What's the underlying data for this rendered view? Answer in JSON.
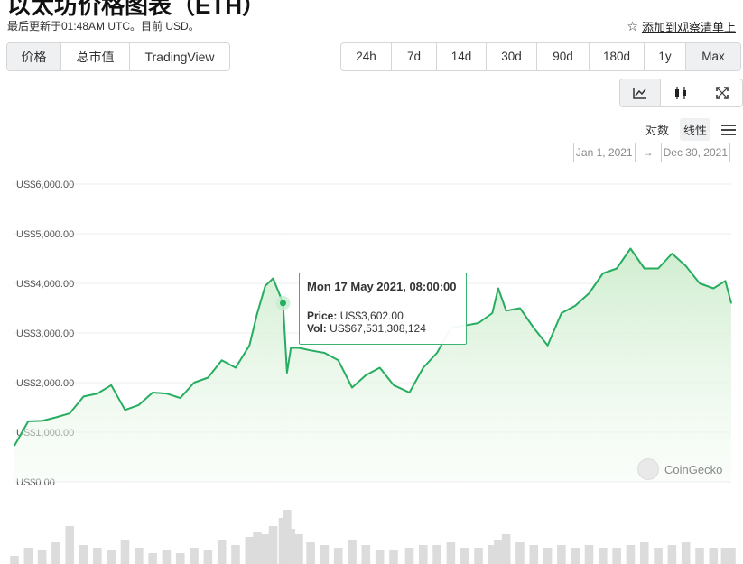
{
  "header": {
    "title": "以太坊价格图表（ETH）",
    "updated": "最后更新于01:48AM UTC。目前 USD。",
    "watchlist_label": "添加到观察清单上"
  },
  "tabs": [
    {
      "label": "价格",
      "active": true
    },
    {
      "label": "总市值",
      "active": false
    },
    {
      "label": "TradingView",
      "active": false
    }
  ],
  "ranges": [
    {
      "label": "24h",
      "active": false
    },
    {
      "label": "7d",
      "active": false
    },
    {
      "label": "14d",
      "active": false
    },
    {
      "label": "30d",
      "active": false
    },
    {
      "label": "90d",
      "active": false
    },
    {
      "label": "180d",
      "active": false
    },
    {
      "label": "1y",
      "active": false
    },
    {
      "label": "Max",
      "active": true
    }
  ],
  "chart_types": [
    {
      "name": "line-chart-icon",
      "active": true
    },
    {
      "name": "candlestick-icon",
      "active": false
    },
    {
      "name": "expand-icon",
      "active": false
    }
  ],
  "scale": {
    "log_label": "对数",
    "linear_label": "线性",
    "active": "linear"
  },
  "date_range": {
    "from": "Jan 1, 2021",
    "arrow": "→",
    "to": "Dec 30, 2021"
  },
  "tooltip": {
    "title": "Mon 17 May 2021, 08:00:00",
    "price_label": "Price:",
    "price_value": "US$3,602.00",
    "vol_label": "Vol:",
    "vol_value": "US$67,531,308,124"
  },
  "watermark": "CoinGecko",
  "colors": {
    "line": "#27ad60",
    "fill_top": "#d8f0d8",
    "crosshair": "#bbbbbb",
    "volume": "#dcdcdc"
  },
  "chart_data": {
    "type": "area",
    "x_range": [
      "2021-01-01",
      "2021-12-30"
    ],
    "ylim": [
      0,
      6000
    ],
    "y_ticks": [
      {
        "value": 0,
        "label": "US$0.00"
      },
      {
        "value": 1000,
        "label": "US$1,000.00"
      },
      {
        "value": 2000,
        "label": "US$2,000.00"
      },
      {
        "value": 3000,
        "label": "US$3,000.00"
      },
      {
        "value": 4000,
        "label": "US$4,000.00"
      },
      {
        "value": 5000,
        "label": "US$5,000.00"
      },
      {
        "value": 6000,
        "label": "US$6,000.00"
      }
    ],
    "highlight": {
      "date": "2021-05-17",
      "value": 3602
    },
    "series": [
      {
        "x": [
          "2021-01-01",
          "2021-01-08",
          "2021-01-15",
          "2021-01-22",
          "2021-01-29",
          "2021-02-05",
          "2021-02-12",
          "2021-02-19",
          "2021-02-26",
          "2021-03-05",
          "2021-03-12",
          "2021-03-19",
          "2021-03-26",
          "2021-04-02",
          "2021-04-09",
          "2021-04-16",
          "2021-04-23",
          "2021-04-30",
          "2021-05-04",
          "2021-05-08",
          "2021-05-12",
          "2021-05-17",
          "2021-05-19",
          "2021-05-21",
          "2021-05-25",
          "2021-05-31",
          "2021-06-07",
          "2021-06-14",
          "2021-06-21",
          "2021-06-28",
          "2021-07-05",
          "2021-07-12",
          "2021-07-20",
          "2021-07-27",
          "2021-08-03",
          "2021-08-10",
          "2021-08-17",
          "2021-08-24",
          "2021-08-31",
          "2021-09-03",
          "2021-09-07",
          "2021-09-14",
          "2021-09-21",
          "2021-09-28",
          "2021-10-05",
          "2021-10-12",
          "2021-10-19",
          "2021-10-26",
          "2021-11-02",
          "2021-11-09",
          "2021-11-16",
          "2021-11-23",
          "2021-11-30",
          "2021-12-07",
          "2021-12-14",
          "2021-12-21",
          "2021-12-27",
          "2021-12-30"
        ],
        "values": [
          730,
          1220,
          1230,
          1300,
          1380,
          1720,
          1780,
          1950,
          1450,
          1550,
          1800,
          1780,
          1690,
          2000,
          2100,
          2450,
          2300,
          2750,
          3400,
          3950,
          4100,
          3602,
          2200,
          2700,
          2700,
          2650,
          2600,
          2450,
          1900,
          2150,
          2300,
          1950,
          1800,
          2300,
          2600,
          3100,
          3150,
          3200,
          3400,
          3900,
          3450,
          3500,
          3100,
          2750,
          3400,
          3550,
          3800,
          4200,
          4300,
          4700,
          4300,
          4300,
          4600,
          4350,
          4000,
          3900,
          4050,
          3600
        ]
      }
    ],
    "volume_series": {
      "note": "relative bar heights, 0-1",
      "values": [
        0.15,
        0.3,
        0.25,
        0.4,
        0.7,
        0.35,
        0.3,
        0.25,
        0.45,
        0.3,
        0.2,
        0.25,
        0.2,
        0.3,
        0.25,
        0.45,
        0.35,
        0.5,
        0.6,
        0.55,
        0.7,
        0.85,
        1.0,
        0.65,
        0.55,
        0.4,
        0.35,
        0.3,
        0.45,
        0.35,
        0.25,
        0.25,
        0.3,
        0.35,
        0.35,
        0.4,
        0.3,
        0.3,
        0.35,
        0.45,
        0.55,
        0.4,
        0.35,
        0.3,
        0.35,
        0.3,
        0.35,
        0.3,
        0.3,
        0.35,
        0.4,
        0.3,
        0.35,
        0.4,
        0.3,
        0.3,
        0.3,
        0.3
      ]
    }
  }
}
